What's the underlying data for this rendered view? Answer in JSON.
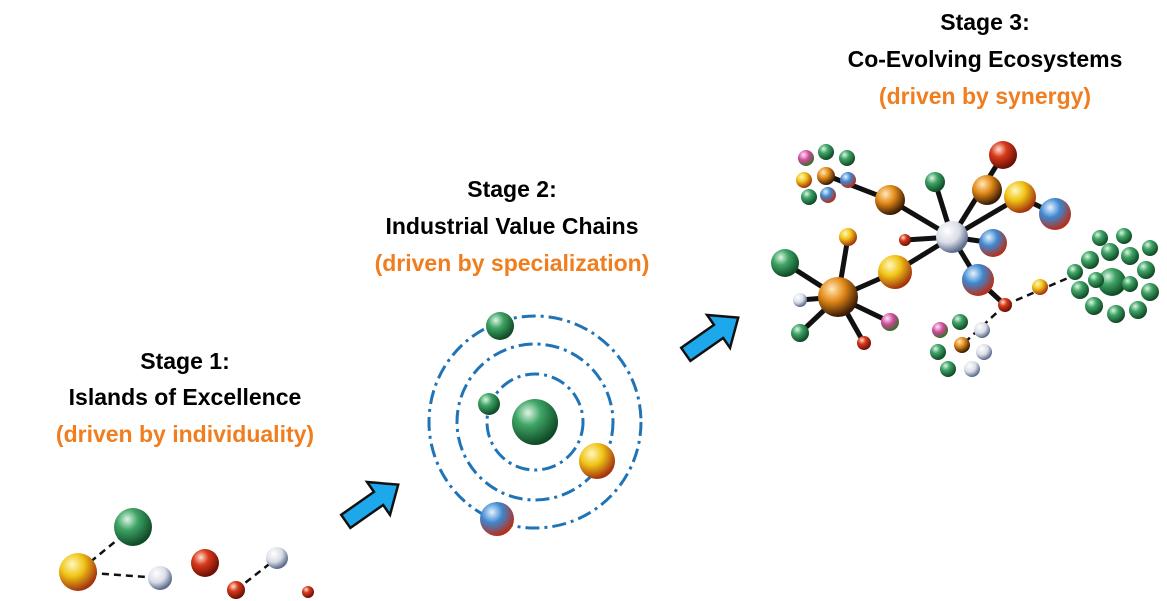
{
  "stages": [
    {
      "title": "Stage 1:",
      "name": "Islands of Excellence",
      "driver": "(driven by individuality)"
    },
    {
      "title": "Stage 2:",
      "name": "Industrial Value Chains",
      "driver": "(driven by specialization)"
    },
    {
      "title": "Stage 3:",
      "name": "Co-Evolving Ecosystems",
      "driver": "(driven by synergy)"
    }
  ]
}
